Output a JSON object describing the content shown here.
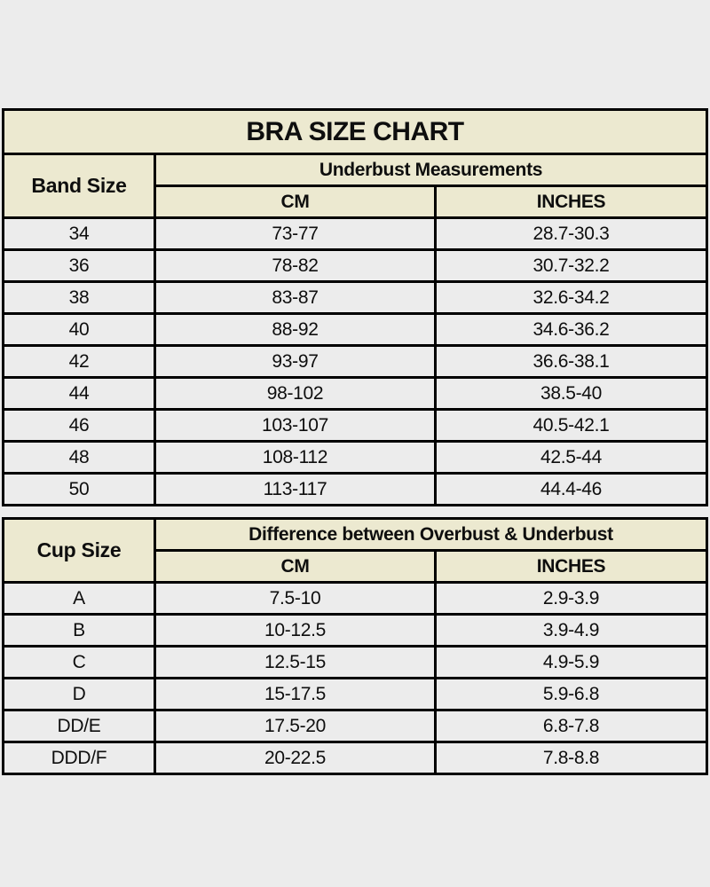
{
  "colors": {
    "page_bg": "#ececec",
    "header_bg": "#ece9d0",
    "cell_bg": "#ececec",
    "border": "#000000",
    "text": "#0e0e0e"
  },
  "chart_data": [
    {
      "type": "table",
      "title": "BRA SIZE CHART",
      "corner_header": "Band Size",
      "group_header": "Underbust Measurements",
      "columns": [
        "CM",
        "INCHES"
      ],
      "rows": [
        [
          "34",
          "73-77",
          "28.7-30.3"
        ],
        [
          "36",
          "78-82",
          "30.7-32.2"
        ],
        [
          "38",
          "83-87",
          "32.6-34.2"
        ],
        [
          "40",
          "88-92",
          "34.6-36.2"
        ],
        [
          "42",
          "93-97",
          "36.6-38.1"
        ],
        [
          "44",
          "98-102",
          "38.5-40"
        ],
        [
          "46",
          "103-107",
          "40.5-42.1"
        ],
        [
          "48",
          "108-112",
          "42.5-44"
        ],
        [
          "50",
          "113-117",
          "44.4-46"
        ]
      ]
    },
    {
      "type": "table",
      "corner_header": "Cup Size",
      "group_header": "Difference between Overbust & Underbust",
      "columns": [
        "CM",
        "INCHES"
      ],
      "rows": [
        [
          "A",
          "7.5-10",
          "2.9-3.9"
        ],
        [
          "B",
          "10-12.5",
          "3.9-4.9"
        ],
        [
          "C",
          "12.5-15",
          "4.9-5.9"
        ],
        [
          "D",
          "15-17.5",
          "5.9-6.8"
        ],
        [
          "DD/E",
          "17.5-20",
          "6.8-7.8"
        ],
        [
          "DDD/F",
          "20-22.5",
          "7.8-8.8"
        ]
      ]
    }
  ]
}
